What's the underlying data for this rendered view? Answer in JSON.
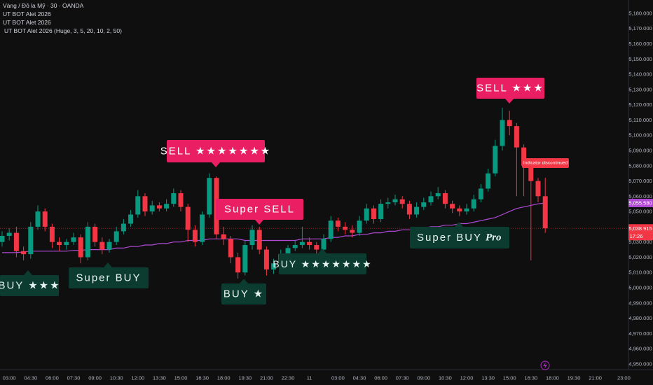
{
  "chart_data": {
    "type": "candlestick",
    "title": "Vàng / Đô la Mỹ · 30 · OANDA",
    "indicators": [
      "UT BOT Alet 2026",
      "UT BOT Alet 2026",
      "UT BOT Alet 2026 (Huge, 3, 5, 20, 10, 2, 50)"
    ],
    "categories": [
      null,
      "03:00",
      null,
      null,
      "04:30",
      null,
      null,
      "06:00",
      null,
      null,
      "07:30",
      null,
      null,
      "09:00",
      null,
      null,
      "10:30",
      null,
      null,
      "12:00",
      null,
      null,
      "13:30",
      null,
      null,
      "15:00",
      null,
      null,
      "16:30",
      null,
      null,
      "18:00",
      null,
      null,
      "19:30",
      null,
      null,
      "21:00",
      null,
      null,
      "22:30",
      null,
      null,
      "11",
      null,
      null,
      null,
      "03:00",
      null,
      null,
      "04:30",
      null,
      null,
      "06:00",
      null,
      null,
      "07:30",
      null,
      null,
      "09:00",
      null,
      null,
      "10:30",
      null,
      null,
      "12:00",
      null,
      null,
      "13:30",
      null,
      null,
      "15:00",
      null,
      null,
      "16:30",
      null,
      null,
      "18:00",
      null,
      null,
      "19:30",
      null,
      null,
      "21:00",
      null,
      null,
      null,
      "23:00"
    ],
    "open": [
      5030,
      5034,
      5036,
      5024,
      5022,
      5040,
      5050,
      5040,
      5030,
      5028,
      5030,
      5033,
      5020,
      5040,
      5030,
      5025,
      5030,
      5037,
      5042,
      5048,
      5060,
      5050,
      5054,
      5052,
      5055,
      5062,
      5053,
      5038,
      5030,
      5048,
      5072,
      5035,
      5032,
      5020,
      5010,
      5028,
      5038,
      5025,
      5012,
      5016,
      5022,
      5026,
      5028,
      5030,
      5028,
      5025,
      5032,
      5044,
      5040,
      5038,
      5036,
      5044,
      5052,
      5045,
      5055,
      5056,
      5058,
      5055,
      5048,
      5053,
      5056,
      5060,
      5062,
      5055,
      5052,
      5050,
      5052,
      5058,
      5065,
      5075,
      5093,
      5110,
      5106,
      5092,
      5080,
      5070,
      5060,
      null,
      null,
      null,
      null,
      null,
      null,
      null,
      null,
      null,
      null,
      null
    ],
    "high": [
      5037,
      5039,
      5040,
      5027,
      5043,
      5054,
      5052,
      5042,
      5033,
      5032,
      5036,
      5035,
      5043,
      5042,
      5033,
      5032,
      5040,
      5045,
      5051,
      5064,
      5062,
      5057,
      5056,
      5058,
      5065,
      5064,
      5055,
      5041,
      5050,
      5075,
      5073,
      5040,
      5034,
      5023,
      5031,
      5041,
      5040,
      5027,
      5019,
      5025,
      5028,
      5031,
      5040,
      5033,
      5030,
      5035,
      5047,
      5046,
      5043,
      5041,
      5047,
      5055,
      5054,
      5058,
      5059,
      5061,
      5060,
      5057,
      5056,
      5059,
      5063,
      5066,
      5064,
      5057,
      5054,
      5055,
      5061,
      5068,
      5078,
      5097,
      5118,
      5116,
      5108,
      5094,
      5082,
      5072,
      5072,
      null,
      null,
      null,
      null,
      null,
      null,
      null,
      null,
      null,
      null,
      null
    ],
    "low": [
      5027,
      5031,
      5020,
      5018,
      5019,
      5038,
      5037,
      5026,
      5024,
      5025,
      5028,
      5016,
      5018,
      5027,
      5022,
      5023,
      5028,
      5035,
      5040,
      5046,
      5047,
      5048,
      5050,
      5050,
      5053,
      5050,
      5030,
      5027,
      5028,
      5046,
      5032,
      5028,
      5016,
      5006,
      5008,
      5025,
      5022,
      5008,
      5009,
      5014,
      5020,
      5024,
      5026,
      5025,
      5022,
      5023,
      5030,
      5037,
      5035,
      5033,
      5034,
      5042,
      5042,
      5043,
      5052,
      5054,
      5052,
      5045,
      5046,
      5051,
      5054,
      5058,
      5052,
      5049,
      5047,
      5048,
      5050,
      5056,
      5063,
      5073,
      5090,
      5100,
      5060,
      5060,
      5018,
      5056,
      5036,
      null,
      null,
      null,
      null,
      null,
      null,
      null,
      null,
      null,
      null,
      null
    ],
    "close": [
      5034,
      5036,
      5024,
      5022,
      5040,
      5050,
      5040,
      5030,
      5028,
      5030,
      5033,
      5020,
      5040,
      5030,
      5025,
      5030,
      5037,
      5042,
      5048,
      5060,
      5050,
      5054,
      5052,
      5055,
      5062,
      5053,
      5038,
      5030,
      5048,
      5072,
      5035,
      5032,
      5020,
      5010,
      5028,
      5038,
      5025,
      5012,
      5016,
      5022,
      5026,
      5028,
      5030,
      5028,
      5025,
      5032,
      5044,
      5040,
      5038,
      5036,
      5044,
      5052,
      5045,
      5055,
      5056,
      5058,
      5055,
      5048,
      5053,
      5056,
      5060,
      5062,
      5055,
      5052,
      5050,
      5052,
      5058,
      5065,
      5075,
      5093,
      5110,
      5106,
      5092,
      5080,
      5070,
      5060,
      5039,
      null,
      null,
      null,
      null,
      null,
      null,
      null,
      null,
      null,
      null,
      null
    ],
    "up_color": "#089981",
    "down_color": "#f23645",
    "moving_average": {
      "color": "#b04ad6",
      "values": [
        5023,
        5023,
        5023,
        5023.5,
        5024,
        5024,
        5024,
        5024,
        5024,
        5024,
        5024.5,
        5024.5,
        5025,
        5025,
        5025,
        5025,
        5026,
        5026,
        5027,
        5027,
        5028,
        5028,
        5029,
        5029,
        5030,
        5030,
        5031,
        5031,
        5031,
        5032,
        5032,
        5032,
        5032,
        5032,
        5031,
        5031,
        5031,
        5031,
        5031,
        5031,
        5031,
        5031,
        5032,
        5032,
        5032,
        5032,
        5033,
        5033,
        5034,
        5034,
        5035,
        5035,
        5036,
        5036,
        5037,
        5037,
        5038,
        5038,
        5039,
        5039,
        5040,
        5040,
        5041,
        5041,
        5042,
        5042,
        5043,
        5044,
        5045,
        5046,
        5048,
        5050,
        5052,
        5053,
        5054,
        5055,
        5055.58,
        null,
        null,
        null,
        null,
        null,
        null,
        null,
        null,
        null,
        null,
        null
      ]
    },
    "ylim": [
      4946.3,
      5188.7
    ],
    "yticks": [
      {
        "value": 4950,
        "label": "4,950.000"
      },
      {
        "value": 4960,
        "label": "4,960.000"
      },
      {
        "value": 4970,
        "label": "4,970.000"
      },
      {
        "value": 4980,
        "label": "4,980.000"
      },
      {
        "value": 4990,
        "label": "4,990.000"
      },
      {
        "value": 5000,
        "label": "5,000.000"
      },
      {
        "value": 5010,
        "label": "5,010.000"
      },
      {
        "value": 5020,
        "label": "5,020.000"
      },
      {
        "value": 5030,
        "label": "5,030.000"
      },
      {
        "value": 5040,
        "label": "5,040.000"
      },
      {
        "value": 5050,
        "label": "5,050.000"
      },
      {
        "value": 5060,
        "label": "5,060.000"
      },
      {
        "value": 5070,
        "label": "5,070.000"
      },
      {
        "value": 5080,
        "label": "5,080.000"
      },
      {
        "value": 5090,
        "label": "5,090.000"
      },
      {
        "value": 5100,
        "label": "5,100.000"
      },
      {
        "value": 5110,
        "label": "5,110.000"
      },
      {
        "value": 5120,
        "label": "5,120.000"
      },
      {
        "value": 5130,
        "label": "5,130.000"
      },
      {
        "value": 5140,
        "label": "5,140.000"
      },
      {
        "value": 5150,
        "label": "5,150.000"
      },
      {
        "value": 5160,
        "label": "5,160.000"
      },
      {
        "value": 5170,
        "label": "5,170.000"
      },
      {
        "value": 5180,
        "label": "5,180.000"
      }
    ],
    "ma_marker": {
      "value": 5055.58,
      "label": "5,055.580"
    },
    "current_price": {
      "value": 5038.915,
      "label": "5,038.915",
      "countdown": "17:26"
    },
    "annotations": [
      {
        "text": "BUY ★★★"
      },
      {
        "text": "Super BUY"
      },
      {
        "text": "SELL ★★★★★★★"
      },
      {
        "text": "Super SELL"
      },
      {
        "text": "BUY ★"
      },
      {
        "text": "BUY ★★★★★★★"
      },
      {
        "text": "Super BUY",
        "emphasis": "Pro"
      },
      {
        "text": "SELL ★★★"
      },
      {
        "text": "Indicator discontinued"
      }
    ]
  }
}
